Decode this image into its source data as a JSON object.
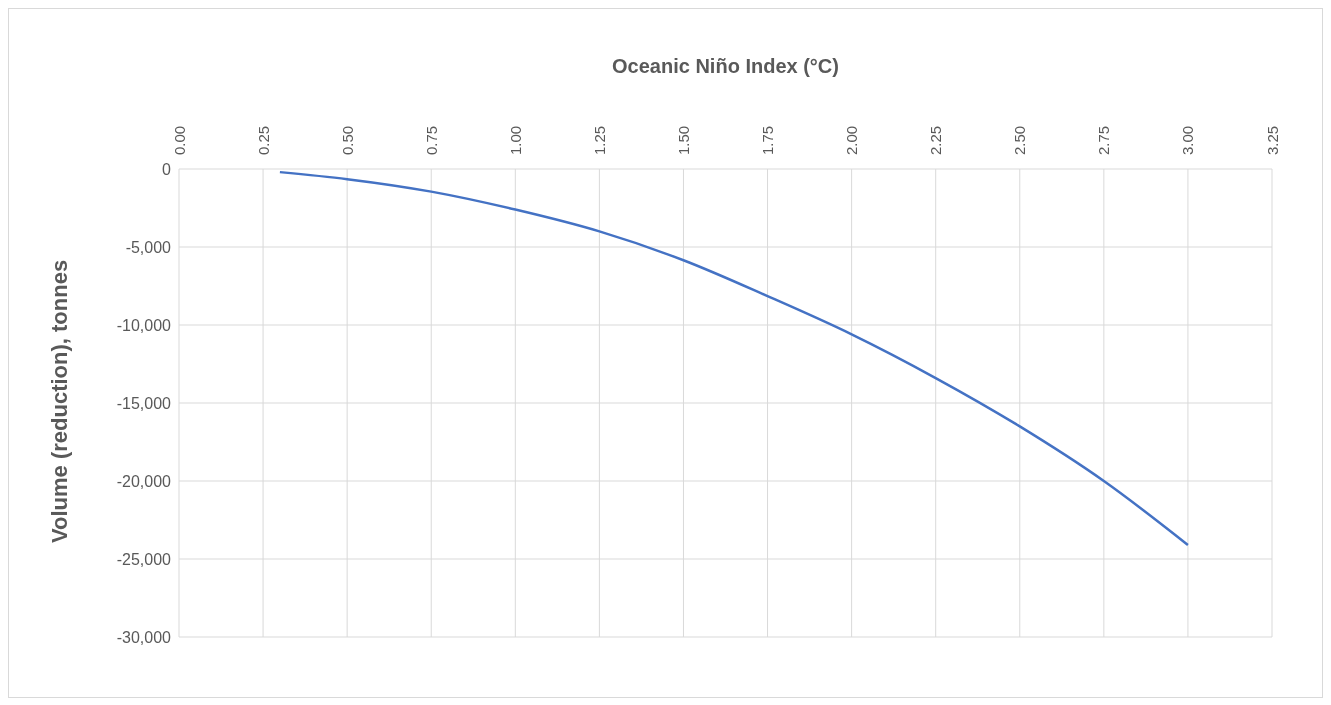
{
  "chart_data": {
    "type": "line",
    "xlabel": "Oceanic Niño Index (°C)",
    "ylabel": "Volume (reduction), tonnes",
    "x": [
      0.3,
      0.5,
      0.75,
      1.0,
      1.25,
      1.5,
      1.75,
      2.0,
      2.25,
      2.5,
      2.75,
      3.0
    ],
    "series": [
      {
        "color": "#4472c4",
        "values": [
          -200,
          -650,
          -1450,
          -2600,
          -4000,
          -5850,
          -8150,
          -10600,
          -13400,
          -16500,
          -20000,
          -24100
        ]
      }
    ],
    "xlim": [
      0,
      3.25
    ],
    "xticks": [
      {
        "value": 0,
        "label": "0.00"
      },
      {
        "value": 0.25,
        "label": "0.25"
      },
      {
        "value": 0.5,
        "label": "0.50"
      },
      {
        "value": 0.75,
        "label": "0.75"
      },
      {
        "value": 1,
        "label": "1.00"
      },
      {
        "value": 1.25,
        "label": "1.25"
      },
      {
        "value": 1.5,
        "label": "1.50"
      },
      {
        "value": 1.75,
        "label": "1.75"
      },
      {
        "value": 2,
        "label": "2.00"
      },
      {
        "value": 2.25,
        "label": "2.25"
      },
      {
        "value": 2.5,
        "label": "2.50"
      },
      {
        "value": 2.75,
        "label": "2.75"
      },
      {
        "value": 3,
        "label": "3.00"
      },
      {
        "value": 3.25,
        "label": "3.25"
      }
    ],
    "ylim": [
      -30000,
      0
    ],
    "yticks": [
      0,
      {
        "value": -5000,
        "label": "-5,000"
      },
      {
        "value": -10000,
        "label": "-10,000"
      },
      {
        "value": -15000,
        "label": "-15,000"
      },
      {
        "value": -20000,
        "label": "-20,000"
      },
      {
        "value": -25000,
        "label": "-25,000"
      },
      {
        "value": -30000,
        "label": "-30,000"
      }
    ],
    "grid": true,
    "legend": false,
    "marker": "none",
    "line_style": "solid"
  }
}
